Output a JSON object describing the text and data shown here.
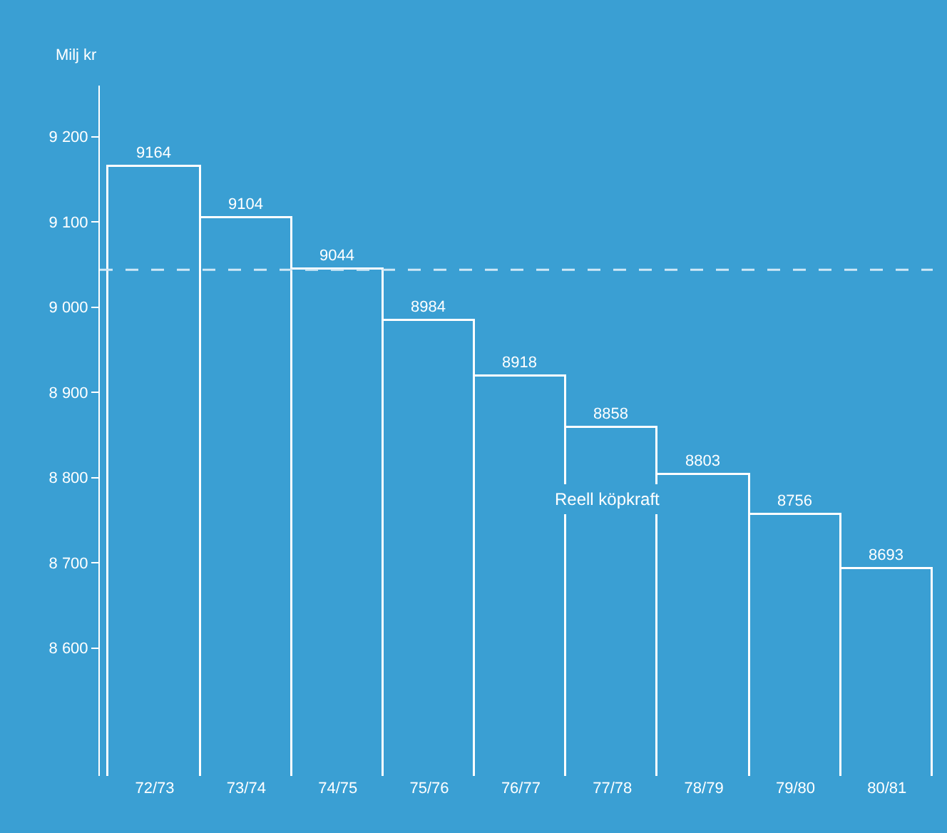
{
  "chart_data": {
    "type": "bar",
    "ylabel": "Milj kr",
    "categories": [
      "72/73",
      "73/74",
      "74/75",
      "75/76",
      "76/77",
      "77/78",
      "78/79",
      "79/80",
      "80/81"
    ],
    "values": [
      9164,
      9104,
      9044,
      8984,
      8918,
      8858,
      8803,
      8756,
      8693
    ],
    "color": "#3a9fd3",
    "data_labels": true,
    "ylim": [
      8450,
      9260
    ],
    "yticks": [
      {
        "value": 8600,
        "label": "8 600"
      },
      {
        "value": 8700,
        "label": "8 700"
      },
      {
        "value": 8800,
        "label": "8 800"
      },
      {
        "value": 8900,
        "label": "8 900"
      },
      {
        "value": 9000,
        "label": "9 000"
      },
      {
        "value": 9100,
        "label": "9 100"
      },
      {
        "value": 9200,
        "label": "9 200"
      }
    ],
    "ref_lines": [
      {
        "axis": "y",
        "value": 9044,
        "color": "#cfe8f6",
        "line_style": "dashed"
      }
    ],
    "annotations": [
      "Reell köpkraft"
    ],
    "grid": false,
    "legend": false
  }
}
